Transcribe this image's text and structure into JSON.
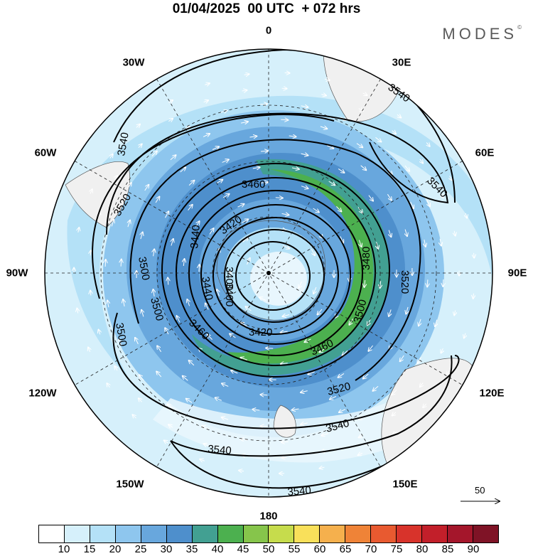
{
  "title": "01/04/2025  00 UTC  + 072 hrs",
  "brand": "MODES",
  "brand_mark": "©",
  "longitude_labels": [
    "0",
    "30E",
    "60E",
    "90E",
    "120E",
    "150E",
    "180",
    "150W",
    "120W",
    "90W",
    "60W",
    "30W"
  ],
  "contour_labels": [
    "3540",
    "3540",
    "3540",
    "3540",
    "3540",
    "3540",
    "3520",
    "3520",
    "3520",
    "3500",
    "3500",
    "3500",
    "3500",
    "3480",
    "3460",
    "3460",
    "3460",
    "3440",
    "3440",
    "3420",
    "3420",
    "3400",
    "3400"
  ],
  "reference_vector": "50",
  "colorbar": {
    "colors": [
      "#ffffff",
      "#d6f0fb",
      "#b4e1f7",
      "#8ec6ee",
      "#68a7dd",
      "#4e8fcc",
      "#42a092",
      "#4cb04f",
      "#86c54b",
      "#c6dc4c",
      "#f9e05a",
      "#f5b04d",
      "#ef8337",
      "#e85a30",
      "#d8332b",
      "#c21f2a",
      "#a4162b",
      "#7f1326"
    ],
    "labels": [
      "10",
      "15",
      "20",
      "25",
      "30",
      "35",
      "40",
      "45",
      "50",
      "55",
      "60",
      "65",
      "70",
      "75",
      "80",
      "85",
      "90"
    ]
  }
}
